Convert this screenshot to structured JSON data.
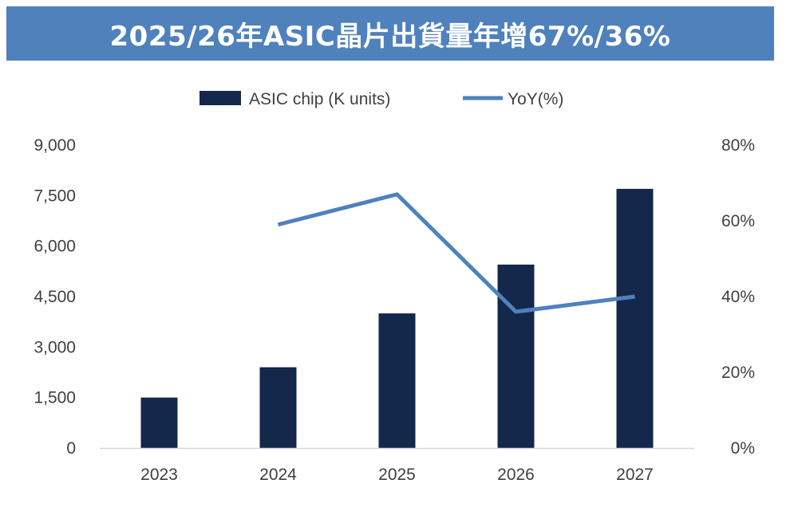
{
  "title": "2025/26年ASIC晶片出貨量年增67%/36%",
  "colors": {
    "banner": "#4f81bd",
    "bar": "#14284b",
    "line": "#4f81bd",
    "axis": "#d9d9d9",
    "text": "#404040"
  },
  "chart_data": {
    "type": "bar",
    "title": "2025/26年ASIC晶片出貨量年增67%/36%",
    "categories": [
      "2023",
      "2024",
      "2025",
      "2026",
      "2027"
    ],
    "series": [
      {
        "name": "ASIC chip (K units)",
        "type": "bar",
        "axis": "left",
        "values": [
          1500,
          2400,
          4000,
          5450,
          7700
        ]
      },
      {
        "name": "YoY(%)",
        "type": "line",
        "axis": "right",
        "values": [
          null,
          59,
          67,
          36,
          40
        ]
      }
    ],
    "y_left": {
      "ylim": [
        0,
        9000
      ],
      "ticks": [
        "0",
        "1,500",
        "3,000",
        "4,500",
        "6,000",
        "7,500",
        "9,000"
      ]
    },
    "y_right": {
      "ylim": [
        0,
        80
      ],
      "ticks": [
        "0%",
        "20%",
        "40%",
        "60%",
        "80%"
      ]
    },
    "grid": false,
    "legend": "top-center"
  }
}
